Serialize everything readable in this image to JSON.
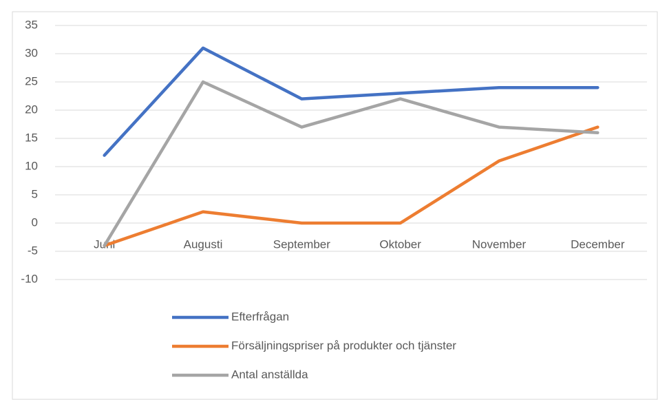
{
  "chart_data": {
    "type": "line",
    "categories": [
      "Juni",
      "Augusti",
      "September",
      "Oktober",
      "November",
      "December"
    ],
    "series": [
      {
        "name": "Efterfrågan",
        "color": "#4472c4",
        "values": [
          12,
          31,
          22,
          23,
          24,
          24
        ]
      },
      {
        "name": "Försäljningspriser på produkter och tjänster",
        "color": "#ed7d31",
        "values": [
          -4,
          2,
          0,
          0,
          11,
          17
        ]
      },
      {
        "name": "Antal anställda",
        "color": "#a5a5a5",
        "values": [
          -4,
          25,
          17,
          22,
          17,
          16
        ]
      }
    ],
    "ylim": [
      -10,
      35
    ],
    "yticks": [
      -10,
      -5,
      0,
      5,
      10,
      15,
      20,
      25,
      30,
      35
    ],
    "grid": true,
    "legend": "bottom"
  }
}
